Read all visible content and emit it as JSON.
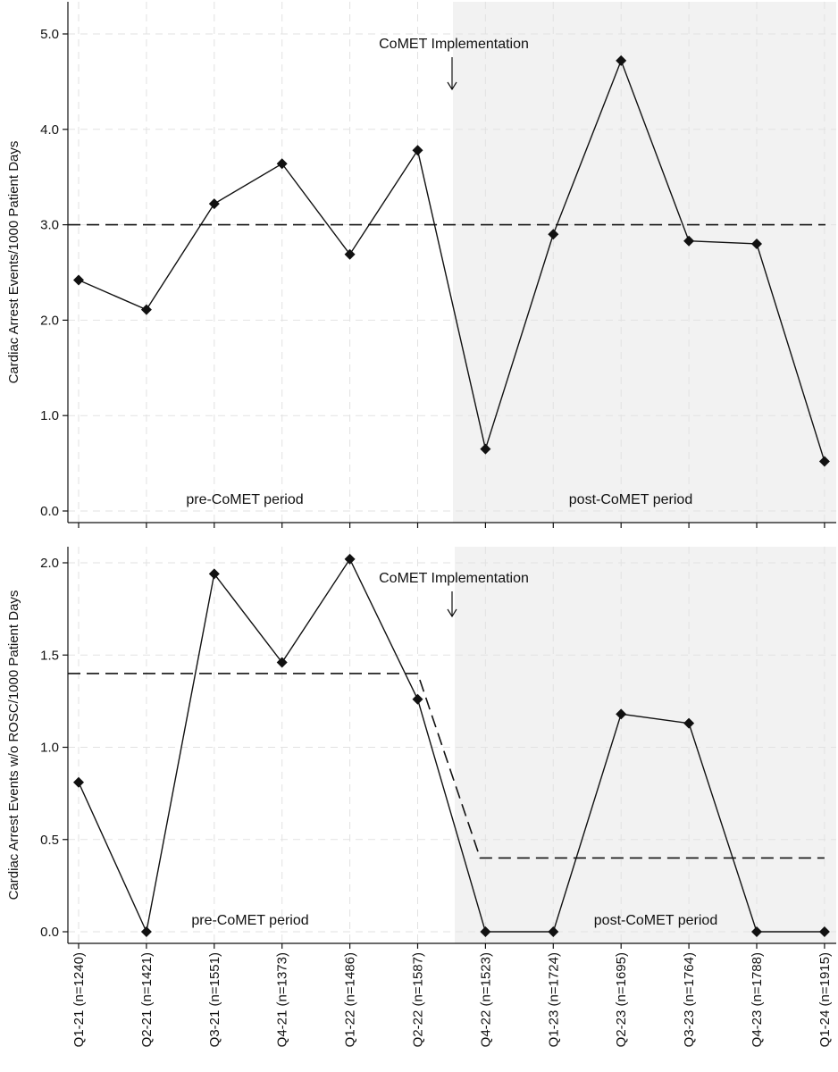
{
  "chart_data": [
    {
      "type": "line",
      "ylabel": "Cardiac Arrest Events/1000 Patient Days",
      "xlabel": "",
      "ylim": [
        0,
        5
      ],
      "yticks": [
        "0.0",
        "1.0",
        "2.0",
        "3.0",
        "4.0",
        "5.0"
      ],
      "grid": true,
      "shaded_region_start_category": "Q4-22 (n=1523)",
      "categories": [
        "Q1-21 (n=1240)",
        "Q2-21 (n=1421)",
        "Q3-21 (n=1551)",
        "Q4-21 (n=1373)",
        "Q1-22 (n=1486)",
        "Q2-22 (n=1587)",
        "Q4-22 (n=1523)",
        "Q1-23 (n=1724)",
        "Q2-23 (n=1695)",
        "Q3-23 (n=1764)",
        "Q4-23 (n=1788)",
        "Q1-24 (n=1915)"
      ],
      "series": [
        {
          "values": [
            2.42,
            2.11,
            3.22,
            3.64,
            2.69,
            3.78,
            0.65,
            2.9,
            4.72,
            2.83,
            2.8,
            0.52
          ],
          "style": "solid",
          "marker": "diamond"
        },
        {
          "values": [
            3.0,
            3.0,
            3.0,
            3.0,
            3.0,
            3.0,
            3.0,
            3.0,
            3.0,
            3.0,
            3.0,
            3.0
          ],
          "style": "dashed"
        }
      ],
      "annotations": {
        "implementation": "CoMET Implementation",
        "pre_period": "pre-CoMET period",
        "post_period": "post-CoMET period"
      }
    },
    {
      "type": "line",
      "ylabel": "Cardiac Arrest Events w/o ROSC/1000 Patient Days",
      "xlabel": "",
      "ylim": [
        0,
        2.0
      ],
      "yticks": [
        "0.0",
        "0.5",
        "1.0",
        "1.5",
        "2.0"
      ],
      "grid": true,
      "shaded_region_start_category": "Q4-22 (n=1523)",
      "categories": [
        "Q1-21 (n=1240)",
        "Q2-21 (n=1421)",
        "Q3-21 (n=1551)",
        "Q4-21 (n=1373)",
        "Q1-22 (n=1486)",
        "Q2-22 (n=1587)",
        "Q4-22 (n=1523)",
        "Q1-23 (n=1724)",
        "Q2-23 (n=1695)",
        "Q3-23 (n=1764)",
        "Q4-23 (n=1788)",
        "Q1-24 (n=1915)"
      ],
      "series": [
        {
          "values": [
            0.81,
            0.0,
            1.94,
            1.46,
            2.02,
            1.26,
            0.0,
            0.0,
            1.18,
            1.13,
            0.0,
            0.0
          ],
          "style": "solid",
          "marker": "diamond"
        },
        {
          "values": [
            1.4,
            1.4,
            1.4,
            1.4,
            1.4,
            1.4,
            0.4,
            0.4,
            0.4,
            0.4,
            0.4,
            0.4
          ],
          "style": "dashed"
        }
      ],
      "annotations": {
        "implementation": "CoMET Implementation",
        "pre_period": "pre-CoMET period",
        "post_period": "post-CoMET period"
      }
    }
  ],
  "colors": {
    "line": "#111111",
    "shade": "#f2f2f2",
    "grid": "#e2e2e2"
  }
}
